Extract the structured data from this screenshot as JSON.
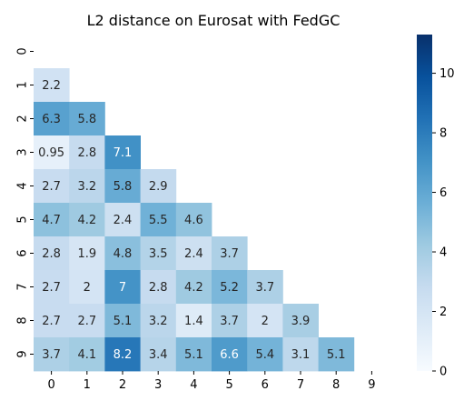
{
  "chart_data": {
    "type": "heatmap",
    "title": "L2 distance on Eurosat with FedGC",
    "xlabel": "",
    "ylabel": "",
    "x_tick_labels": [
      "0",
      "1",
      "2",
      "3",
      "4",
      "5",
      "6",
      "7",
      "8",
      "9"
    ],
    "y_tick_labels": [
      "0",
      "1",
      "2",
      "3",
      "4",
      "5",
      "6",
      "7",
      "8",
      "9"
    ],
    "mask": "upper triangle including diagonal",
    "matrix": [
      [
        null,
        null,
        null,
        null,
        null,
        null,
        null,
        null,
        null,
        null
      ],
      [
        2.2,
        null,
        null,
        null,
        null,
        null,
        null,
        null,
        null,
        null
      ],
      [
        6.3,
        5.8,
        null,
        null,
        null,
        null,
        null,
        null,
        null,
        null
      ],
      [
        0.95,
        2.8,
        7.1,
        null,
        null,
        null,
        null,
        null,
        null,
        null
      ],
      [
        2.7,
        3.2,
        5.8,
        2.9,
        null,
        null,
        null,
        null,
        null,
        null
      ],
      [
        4.7,
        4.2,
        2.4,
        5.5,
        4.6,
        null,
        null,
        null,
        null,
        null
      ],
      [
        2.8,
        1.9,
        4.8,
        3.5,
        2.4,
        3.7,
        null,
        null,
        null,
        null
      ],
      [
        2.7,
        2,
        7,
        2.8,
        4.2,
        5.2,
        3.7,
        null,
        null,
        null
      ],
      [
        2.7,
        2.7,
        5.1,
        3.2,
        1.4,
        3.7,
        2,
        3.9,
        null,
        null
      ],
      [
        3.7,
        4.1,
        8.2,
        3.4,
        5.1,
        6.6,
        5.4,
        3.1,
        5.1,
        null
      ]
    ],
    "annotations": [
      [
        null,
        null,
        null,
        null,
        null,
        null,
        null,
        null,
        null,
        null
      ],
      [
        "2.2",
        null,
        null,
        null,
        null,
        null,
        null,
        null,
        null,
        null
      ],
      [
        "6.3",
        "5.8",
        null,
        null,
        null,
        null,
        null,
        null,
        null,
        null
      ],
      [
        "0.95",
        "2.8",
        "7.1",
        null,
        null,
        null,
        null,
        null,
        null,
        null
      ],
      [
        "2.7",
        "3.2",
        "5.8",
        "2.9",
        null,
        null,
        null,
        null,
        null,
        null
      ],
      [
        "4.7",
        "4.2",
        "2.4",
        "5.5",
        "4.6",
        null,
        null,
        null,
        null,
        null
      ],
      [
        "2.8",
        "1.9",
        "4.8",
        "3.5",
        "2.4",
        "3.7",
        null,
        null,
        null,
        null
      ],
      [
        "2.7",
        "2",
        "7",
        "2.8",
        "4.2",
        "5.2",
        "3.7",
        null,
        null,
        null
      ],
      [
        "2.7",
        "2.7",
        "5.1",
        "3.2",
        "1.4",
        "3.7",
        "2",
        "3.9",
        null,
        null
      ],
      [
        "3.7",
        "4.1",
        "8.2",
        "3.4",
        "5.1",
        "6.6",
        "5.4",
        "3.1",
        "5.1",
        null
      ]
    ],
    "colorbar": {
      "vmin": 0,
      "vmax": 11.3,
      "ticks": [
        0,
        2,
        4,
        6,
        8,
        10
      ],
      "colormap": "Blues",
      "color_low": "#f7fbff",
      "color_high": "#08306b"
    },
    "grid": false,
    "legend": "colorbar right"
  }
}
